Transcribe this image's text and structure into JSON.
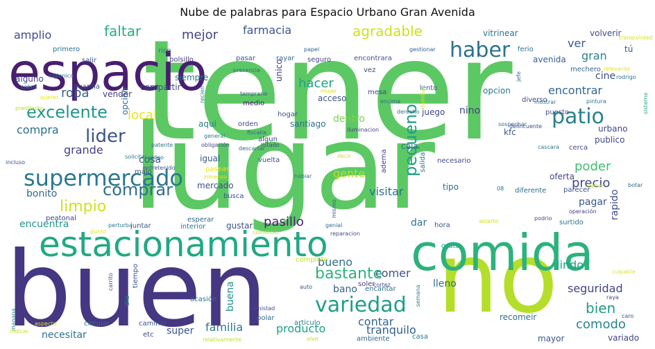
{
  "chart_data": {
    "type": "wordcloud",
    "title": "Nube de palabras para Espacio Urbano Gran Avenida",
    "words": [
      {
        "text": "tener",
        "color": "#5cc863"
      },
      {
        "text": "lugar",
        "color": "#5cc863"
      },
      {
        "text": "buen",
        "color": "#453781"
      },
      {
        "text": "no",
        "color": "#b5de2b"
      },
      {
        "text": "espacio",
        "color": "#481f70"
      },
      {
        "text": "comida",
        "color": "#2db27d"
      },
      {
        "text": "estacionamiento",
        "color": "#22a884"
      },
      {
        "text": "supermercado",
        "color": "#2a788e"
      },
      {
        "text": "variedad",
        "color": "#1f9e89"
      },
      {
        "text": "haber",
        "color": "#2c728e"
      },
      {
        "text": "patio",
        "color": "#26828e"
      },
      {
        "text": "lider",
        "color": "#3b528b"
      },
      {
        "text": "excelente",
        "color": "#1f968b"
      },
      {
        "text": "comprar",
        "color": "#2e6e8e"
      },
      {
        "text": "pequeno",
        "color": "#1f9e89"
      },
      {
        "text": "limpio",
        "color": "#d0e11c"
      },
      {
        "text": "bastante",
        "color": "#2db27d"
      },
      {
        "text": "agradable",
        "color": "#cde11d"
      },
      {
        "text": "faltar",
        "color": "#27ad81"
      },
      {
        "text": "amplio",
        "color": "#3e4a89"
      },
      {
        "text": "mejor",
        "color": "#414487"
      },
      {
        "text": "farmacia",
        "color": "#3a548c"
      },
      {
        "text": "ver",
        "color": "#38588c"
      },
      {
        "text": "gran",
        "color": "#26828e"
      },
      {
        "text": "ropa",
        "color": "#355f8d"
      },
      {
        "text": "local",
        "color": "#e5e419"
      },
      {
        "text": "hacer",
        "color": "#1fa187"
      },
      {
        "text": "encontrar",
        "color": "#31668e"
      },
      {
        "text": "compra",
        "color": "#2f6c8e"
      },
      {
        "text": "grande",
        "color": "#433e85"
      },
      {
        "text": "gente",
        "color": "#b8de29"
      },
      {
        "text": "poder",
        "color": "#40bd72"
      },
      {
        "text": "precio",
        "color": "#3f4788"
      },
      {
        "text": "bien",
        "color": "#1e9b8a"
      },
      {
        "text": "comodo",
        "color": "#24878e"
      },
      {
        "text": "seguridad",
        "color": "#414487"
      },
      {
        "text": "lindo",
        "color": "#1fa088"
      },
      {
        "text": "bueno",
        "color": "#2e6f8e"
      },
      {
        "text": "comer",
        "color": "#3b528b"
      },
      {
        "text": "contar",
        "color": "#31688e"
      },
      {
        "text": "tranquilo",
        "color": "#34608d"
      },
      {
        "text": "familia",
        "color": "#2a778e"
      },
      {
        "text": "producto",
        "color": "#1fa088"
      },
      {
        "text": "pasillo",
        "color": "#482173"
      },
      {
        "text": "bonito",
        "color": "#31688e"
      },
      {
        "text": "visitar",
        "color": "#2e6f8e"
      },
      {
        "text": "cosa",
        "color": "#39558c"
      },
      {
        "text": "encuentra",
        "color": "#1f958b"
      },
      {
        "text": "necesitar",
        "color": "#2c718e"
      },
      {
        "text": "super",
        "color": "#3a548c"
      },
      {
        "text": "buena",
        "color": "#21918c"
      },
      {
        "text": "rapido",
        "color": "#3d4e8a"
      },
      {
        "text": "pagar",
        "color": "#39568c"
      },
      {
        "text": "mercado",
        "color": "#3e4c8a"
      },
      {
        "text": "igual",
        "color": "#38598c"
      },
      {
        "text": "cine",
        "color": "#3d4d8a"
      },
      {
        "text": "nino",
        "color": "#433e85"
      },
      {
        "text": "opcion",
        "color": "#2a788e"
      },
      {
        "text": "dentro",
        "color": "#7ad151"
      },
      {
        "text": "tipo",
        "color": "#2e6e8e"
      },
      {
        "text": "acceso",
        "color": "#3b528b"
      },
      {
        "text": "caja",
        "color": "#2a788e"
      },
      {
        "text": "gustar",
        "color": "#3c508b"
      },
      {
        "text": "dar",
        "color": "#2c728e"
      },
      {
        "text": "bano",
        "color": "#34618d"
      },
      {
        "text": "lleno",
        "color": "#2e6e8e"
      },
      {
        "text": "recomeir",
        "color": "#2d708e"
      },
      {
        "text": "variado",
        "color": "#3f4788"
      },
      {
        "text": "mayor",
        "color": "#3b528b"
      },
      {
        "text": "vitrinear",
        "color": "#2a788e"
      },
      {
        "text": "avenida",
        "color": "#355f8d"
      },
      {
        "text": "volverir",
        "color": "#3e4989"
      },
      {
        "text": "tú",
        "color": "#39568c"
      },
      {
        "text": "aqui",
        "color": "#287d8e"
      },
      {
        "text": "santiago",
        "color": "#2d708e"
      },
      {
        "text": "juego",
        "color": "#404688"
      },
      {
        "text": "urbano",
        "color": "#3f4889"
      },
      {
        "text": "publico",
        "color": "#3e4989"
      },
      {
        "text": "kfc",
        "color": "#38598c"
      },
      {
        "text": "oferta",
        "color": "#414487"
      },
      {
        "text": "siempre",
        "color": "#2a778e"
      },
      {
        "text": "compartir",
        "color": "#3e4c8a"
      },
      {
        "text": "vender",
        "color": "#433e85"
      },
      {
        "text": "opción",
        "color": "#31688e"
      },
      {
        "text": "guardia",
        "color": "#3a548c"
      },
      {
        "text": "alguno",
        "color": "#404588"
      },
      {
        "text": "salir",
        "color": "#3c4f8a"
      },
      {
        "text": "primero",
        "color": "#2c728e"
      },
      {
        "text": "rico",
        "color": "#2e6f8e"
      },
      {
        "text": "bolsillo",
        "color": "#443a83"
      },
      {
        "text": "pasar",
        "color": "#3b528b"
      },
      {
        "text": "rayar",
        "color": "#2f6b8e"
      },
      {
        "text": "seguro",
        "color": "#3f4788"
      },
      {
        "text": "encontrara",
        "color": "#3b528b"
      },
      {
        "text": "papel",
        "color": "#34618d"
      },
      {
        "text": "gestionar",
        "color": "#355e8d"
      },
      {
        "text": "ferio",
        "color": "#2c738e"
      },
      {
        "text": "rodrigo",
        "color": "#2d708e"
      },
      {
        "text": "mechero",
        "color": "#31688e"
      },
      {
        "text": "jefe",
        "color": "#2c718e"
      },
      {
        "text": "diverso",
        "color": "#3e4989"
      },
      {
        "text": "puesto",
        "color": "#3b528b"
      },
      {
        "text": "pintura",
        "color": "#2c728e"
      },
      {
        "text": "sistema",
        "color": "#22a884"
      },
      {
        "text": "mostrar",
        "color": "#2a788e"
      },
      {
        "text": "lento",
        "color": "#355e8d"
      },
      {
        "text": "vez",
        "color": "#3f4788"
      },
      {
        "text": "unico",
        "color": "#433e85"
      },
      {
        "text": "presencia",
        "color": "#31688e"
      },
      {
        "text": "higienico",
        "color": "#2f6c8e"
      },
      {
        "text": "cobro",
        "color": "#2a778e"
      },
      {
        "text": "querer",
        "color": "#e5e419"
      },
      {
        "text": "predilecto",
        "color": "#b5de2b"
      },
      {
        "text": "mujer",
        "color": "#d8e219"
      },
      {
        "text": "mesa",
        "color": "#3e4a89"
      },
      {
        "text": "temprano",
        "color": "#3d4d8a"
      },
      {
        "text": "medio",
        "color": "#481f70"
      },
      {
        "text": "recien",
        "color": "#287d8e"
      },
      {
        "text": "orden",
        "color": "#3f4889"
      },
      {
        "text": "fiscalia",
        "color": "#31688e"
      },
      {
        "text": "general",
        "color": "#2a788e"
      },
      {
        "text": "obligación",
        "color": "#3e4989"
      },
      {
        "text": "iluminacion",
        "color": "#404688"
      },
      {
        "text": "hogar",
        "color": "#3b528b"
      },
      {
        "text": "derecho",
        "color": "#2c728e"
      },
      {
        "text": "encima",
        "color": "#2f6c8e"
      },
      {
        "text": "familiar",
        "color": "#d8e219"
      },
      {
        "text": "sospechar",
        "color": "#2f6b8e"
      },
      {
        "text": "delincuente",
        "color": "#3e4989"
      },
      {
        "text": "patente",
        "color": "#2c718e"
      },
      {
        "text": "solicitar",
        "color": "#2a788e"
      },
      {
        "text": "video",
        "color": "#2d708e"
      },
      {
        "text": "entretenido",
        "color": "#3b528b"
      },
      {
        "text": "incluso",
        "color": "#3e4989"
      },
      {
        "text": "malo",
        "color": "#3b528b"
      },
      {
        "text": "algun",
        "color": "#3f4788"
      },
      {
        "text": "listado",
        "color": "#3e4c8a"
      },
      {
        "text": "descartar",
        "color": "#31688e"
      },
      {
        "text": "vuelta",
        "color": "#3c4f8a"
      },
      {
        "text": "adema",
        "color": "#433e85"
      },
      {
        "text": "salida",
        "color": "#2c728e"
      },
      {
        "text": "necesario",
        "color": "#3e4989"
      },
      {
        "text": "decir",
        "color": "#d0e11c"
      },
      {
        "text": "habiar",
        "color": "#2a778e"
      },
      {
        "text": "pasear",
        "color": "#e5e419"
      },
      {
        "text": "inmenso",
        "color": "#d8e219"
      },
      {
        "text": "busca",
        "color": "#3b528b"
      },
      {
        "text": "mismo",
        "color": "#34618d"
      },
      {
        "text": "cascara",
        "color": "#2a788e"
      },
      {
        "text": "cerca",
        "color": "#3d4d8a"
      },
      {
        "text": "parecer",
        "color": "#3b528b"
      },
      {
        "text": "deber",
        "color": "#d0e11c"
      },
      {
        "text": "botar",
        "color": "#31688e"
      },
      {
        "text": "diferente",
        "color": "#2f6b8e"
      },
      {
        "text": "08",
        "color": "#2c718e"
      },
      {
        "text": "operación",
        "color": "#433e85"
      },
      {
        "text": "podrio",
        "color": "#3e4989"
      },
      {
        "text": "abierto",
        "color": "#d8e219"
      },
      {
        "text": "surtido",
        "color": "#2c728e"
      },
      {
        "text": "hora",
        "color": "#3b528b"
      },
      {
        "text": "genial",
        "color": "#31688e"
      },
      {
        "text": "reparacion",
        "color": "#3e4c8a"
      },
      {
        "text": "manana",
        "color": "#2a788e"
      },
      {
        "text": "peatonal",
        "color": "#3f4788"
      },
      {
        "text": "punto",
        "color": "#e5e419"
      },
      {
        "text": "perturba",
        "color": "#2a788e"
      },
      {
        "text": "juntar",
        "color": "#3b528b"
      },
      {
        "text": "interior",
        "color": "#2c728e"
      },
      {
        "text": "comercio",
        "color": "#b5de2b"
      },
      {
        "text": "esperar",
        "color": "#31688e"
      },
      {
        "text": "completo",
        "color": "#c2df23"
      },
      {
        "text": "grato",
        "color": "#1fa088"
      },
      {
        "text": "carrito",
        "color": "#3e4989"
      },
      {
        "text": "dia",
        "color": "#2a788e"
      },
      {
        "text": "tiempo",
        "color": "#3b528b"
      },
      {
        "text": "ocasión",
        "color": "#2c728e"
      },
      {
        "text": "amistad",
        "color": "#3e4c8a"
      },
      {
        "text": "polar",
        "color": "#31688e"
      },
      {
        "text": "articulo",
        "color": "#2a788e"
      },
      {
        "text": "soler",
        "color": "#433e85"
      },
      {
        "text": "cortez",
        "color": "#3e4989"
      },
      {
        "text": "encantar",
        "color": "#2c728e"
      },
      {
        "text": "auto",
        "color": "#3b528b"
      },
      {
        "text": "semana",
        "color": "#2a788e"
      },
      {
        "text": "raya",
        "color": "#3e4989"
      },
      {
        "text": "caro",
        "color": "#3b528b"
      },
      {
        "text": "culpable",
        "color": "#e5e419"
      },
      {
        "text": "aspecto",
        "color": "#d8e219"
      },
      {
        "text": "circular",
        "color": "#2c728e"
      },
      {
        "text": "caminar",
        "color": "#3b528b"
      },
      {
        "text": "indicar",
        "color": "#d0e11c"
      },
      {
        "text": "relativamente",
        "color": "#c2df23"
      },
      {
        "text": "olvir",
        "color": "#b5de2b"
      },
      {
        "text": "ambiente",
        "color": "#31688e"
      },
      {
        "text": "casa",
        "color": "#2a788e"
      },
      {
        "text": "tranquilidad",
        "color": "#d8e219"
      },
      {
        "text": "relevante",
        "color": "#e5e419"
      },
      {
        "text": "etc",
        "color": "#3e4989"
      }
    ]
  }
}
